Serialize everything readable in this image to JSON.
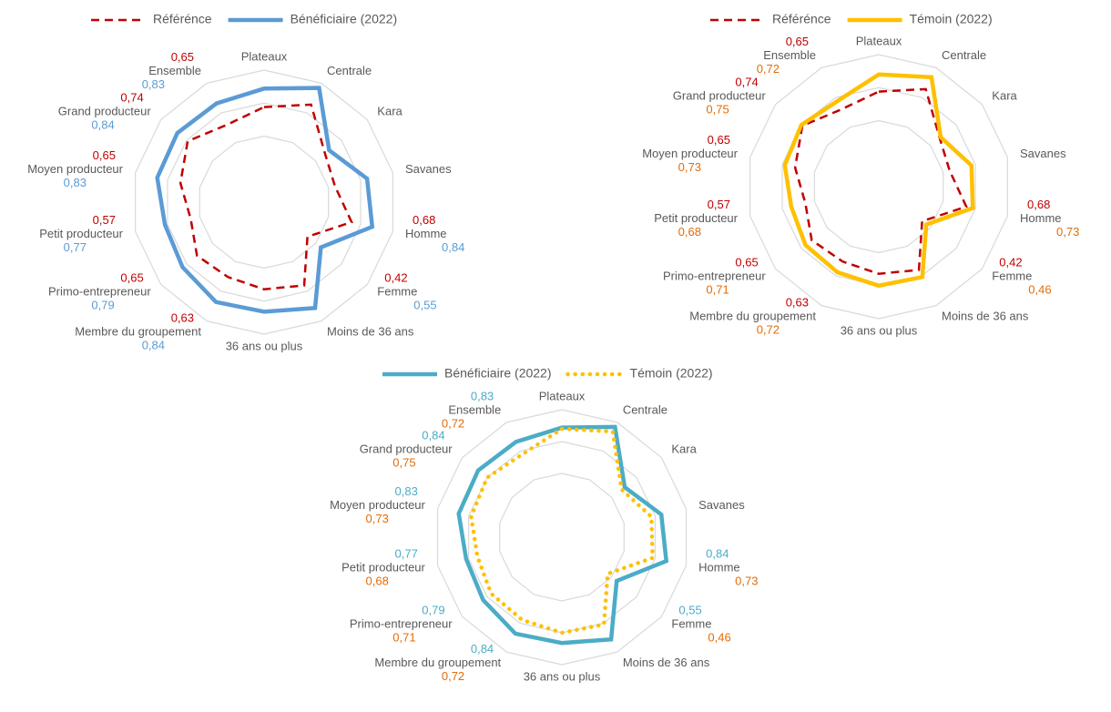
{
  "chart_data": [
    {
      "type": "radar",
      "categories": [
        "Plateaux",
        "Centrale",
        "Kara",
        "Savanes",
        "Homme",
        "Femme",
        "Moins de 36 ans",
        "36 ans ou plus",
        "Membre du groupement",
        "Primo-entrepreneur",
        "Petit producteur",
        "Moyen producteur",
        "Grand producteur",
        "Ensemble"
      ],
      "series": [
        {
          "name": "Référénce",
          "color": "#c00000",
          "line_style": "dashed",
          "values": [
            0.72,
            0.82,
            0.59,
            0.55,
            0.68,
            0.42,
            0.7,
            0.66,
            0.63,
            0.65,
            0.57,
            0.65,
            0.74,
            0.65
          ],
          "value_labels": [
            null,
            null,
            null,
            null,
            "0,68",
            "0,42",
            null,
            null,
            "0,63",
            "0,65",
            "0,57",
            "0,65",
            "0,74",
            "0,65"
          ]
        },
        {
          "name": "Bénéficiaire (2022)",
          "color": "#5b9bd5",
          "line_style": "solid",
          "values": [
            0.86,
            0.96,
            0.63,
            0.8,
            0.84,
            0.55,
            0.89,
            0.83,
            0.84,
            0.79,
            0.77,
            0.83,
            0.84,
            0.83
          ],
          "value_labels": [
            null,
            null,
            null,
            null,
            "0,84",
            "0,55",
            null,
            null,
            "0,84",
            "0,79",
            "0,77",
            "0,83",
            "0,84",
            "0,83"
          ]
        }
      ],
      "ylim": [
        0,
        1
      ],
      "yticks": [
        0.5,
        0.75,
        1
      ],
      "legend": "top"
    },
    {
      "type": "radar",
      "categories": [
        "Plateaux",
        "Centrale",
        "Kara",
        "Savanes",
        "Homme",
        "Femme",
        "Moins de 36 ans",
        "36 ans ou plus",
        "Membre du groupement",
        "Primo-entrepreneur",
        "Petit producteur",
        "Moyen producteur",
        "Grand producteur",
        "Ensemble"
      ],
      "series": [
        {
          "name": "Référénce",
          "color": "#c00000",
          "line_style": "dashed",
          "values": [
            0.72,
            0.82,
            0.59,
            0.55,
            0.68,
            0.42,
            0.7,
            0.66,
            0.63,
            0.65,
            0.57,
            0.65,
            0.74,
            0.65
          ],
          "value_labels": [
            null,
            null,
            null,
            null,
            "0,68",
            "0,42",
            null,
            null,
            "0,63",
            "0,65",
            "0,57",
            "0,65",
            "0,74",
            "0,65"
          ]
        },
        {
          "name": "Témoin (2022)",
          "color": "#ffc000",
          "label_color": "#e36c09",
          "line_style": "solid",
          "values": [
            0.85,
            0.92,
            0.6,
            0.72,
            0.73,
            0.46,
            0.76,
            0.75,
            0.72,
            0.71,
            0.68,
            0.73,
            0.75,
            0.72
          ],
          "value_labels": [
            null,
            null,
            null,
            null,
            "0,73",
            "0,46",
            null,
            null,
            "0,72",
            "0,71",
            "0,68",
            "0,73",
            "0,75",
            "0,72"
          ]
        }
      ],
      "ylim": [
        0,
        1
      ],
      "yticks": [
        0.5,
        0.75,
        1
      ],
      "legend": "top"
    },
    {
      "type": "radar",
      "categories": [
        "Plateaux",
        "Centrale",
        "Kara",
        "Savanes",
        "Homme",
        "Femme",
        "Moins de 36 ans",
        "36 ans ou plus",
        "Membre du groupement",
        "Primo-entrepreneur",
        "Petit producteur",
        "Moyen producteur",
        "Grand producteur",
        "Ensemble"
      ],
      "series": [
        {
          "name": "Bénéficiaire (2022)",
          "color": "#4bacc6",
          "line_style": "solid",
          "values": [
            0.86,
            0.96,
            0.63,
            0.8,
            0.84,
            0.55,
            0.89,
            0.83,
            0.84,
            0.79,
            0.77,
            0.83,
            0.84,
            0.83
          ],
          "value_labels": [
            null,
            null,
            null,
            null,
            "0,84",
            "0,55",
            null,
            null,
            "0,84",
            "0,79",
            "0,77",
            "0,83",
            "0,84",
            "0,83"
          ]
        },
        {
          "name": "Témoin (2022)",
          "color": "#ffc000",
          "label_color": "#e36c09",
          "line_style": "dotted",
          "values": [
            0.85,
            0.92,
            0.6,
            0.72,
            0.73,
            0.46,
            0.76,
            0.75,
            0.72,
            0.71,
            0.68,
            0.73,
            0.75,
            0.72
          ],
          "value_labels": [
            null,
            null,
            null,
            null,
            "0,73",
            "0,46",
            null,
            null,
            "0,72",
            "0,71",
            "0,68",
            "0,73",
            "0,75",
            "0,72"
          ]
        }
      ],
      "ylim": [
        0,
        1
      ],
      "yticks": [
        0.5,
        0.75,
        1
      ],
      "legend": "top"
    }
  ]
}
